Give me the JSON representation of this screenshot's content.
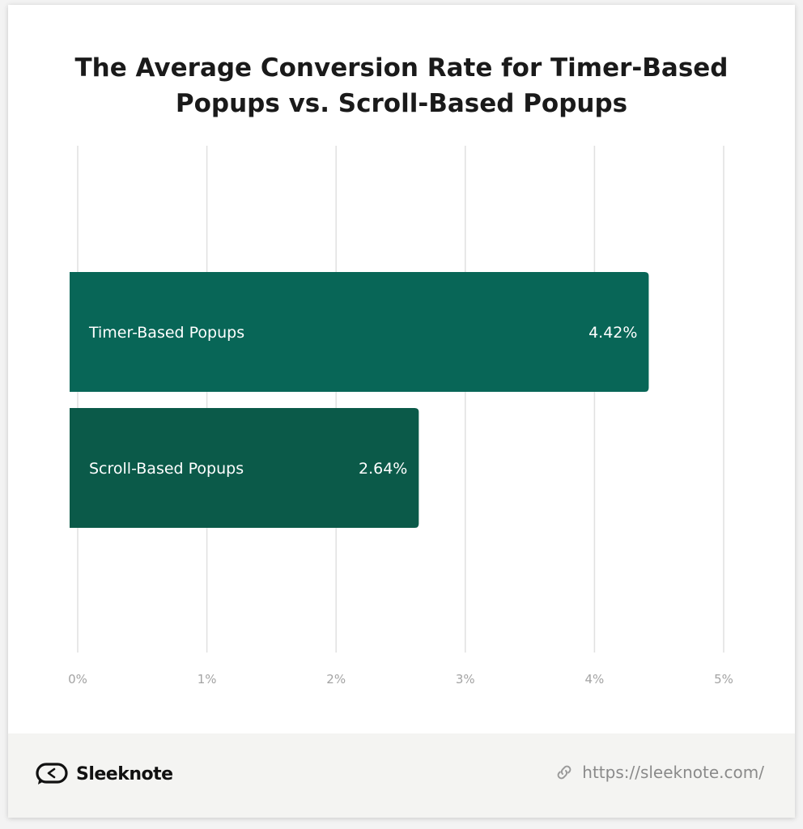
{
  "title_line1": "The Average Conversion Rate for Timer-Based",
  "title_line2": "Popups vs. Scroll-Based Popups",
  "chart_data": {
    "type": "bar",
    "orientation": "horizontal",
    "categories": [
      "Timer-Based Popups",
      "Scroll-Based Popups"
    ],
    "values": [
      4.42,
      2.64
    ],
    "value_labels": [
      "4.42%",
      "2.64%"
    ],
    "colors": [
      "#086657",
      "#0b5a49"
    ],
    "xlim": [
      0,
      5
    ],
    "xticks": [
      "0%",
      "1%",
      "2%",
      "3%",
      "4%",
      "5%"
    ],
    "grid": true,
    "legend": "none"
  },
  "footer": {
    "brand_name": "Sleeknote",
    "url": "https://sleeknote.com/",
    "logo_icon": "sleeknote-logo-icon",
    "link_icon": "link-icon"
  }
}
